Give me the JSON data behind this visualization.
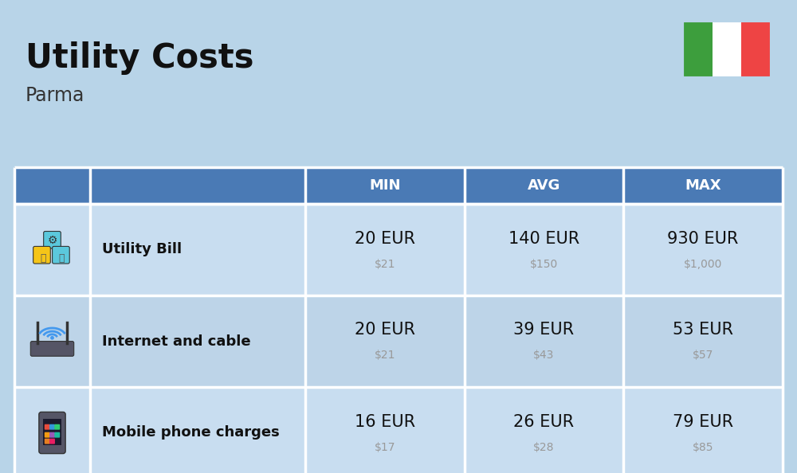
{
  "title": "Utility Costs",
  "subtitle": "Parma",
  "background_color": "#b8d4e8",
  "header_bg_color": "#4a7ab5",
  "header_text_color": "#ffffff",
  "row_bg_color_1": "#c8ddf0",
  "row_bg_color_2": "#bdd4e8",
  "table_line_color": "#ffffff",
  "columns": [
    "MIN",
    "AVG",
    "MAX"
  ],
  "rows": [
    {
      "label": "Utility Bill",
      "min_eur": "20 EUR",
      "min_usd": "$21",
      "avg_eur": "140 EUR",
      "avg_usd": "$150",
      "max_eur": "930 EUR",
      "max_usd": "$1,000"
    },
    {
      "label": "Internet and cable",
      "min_eur": "20 EUR",
      "min_usd": "$21",
      "avg_eur": "39 EUR",
      "avg_usd": "$43",
      "max_eur": "53 EUR",
      "max_usd": "$57"
    },
    {
      "label": "Mobile phone charges",
      "min_eur": "16 EUR",
      "min_usd": "$17",
      "avg_eur": "26 EUR",
      "avg_usd": "$28",
      "max_eur": "79 EUR",
      "max_usd": "$85"
    }
  ],
  "flag_colors": [
    "#3d9e3d",
    "#ffffff",
    "#ee4444"
  ],
  "title_fontsize": 30,
  "subtitle_fontsize": 17,
  "header_fontsize": 13,
  "label_fontsize": 13,
  "value_fontsize": 15,
  "usd_fontsize": 10,
  "text_color": "#111111",
  "usd_color": "#999999"
}
